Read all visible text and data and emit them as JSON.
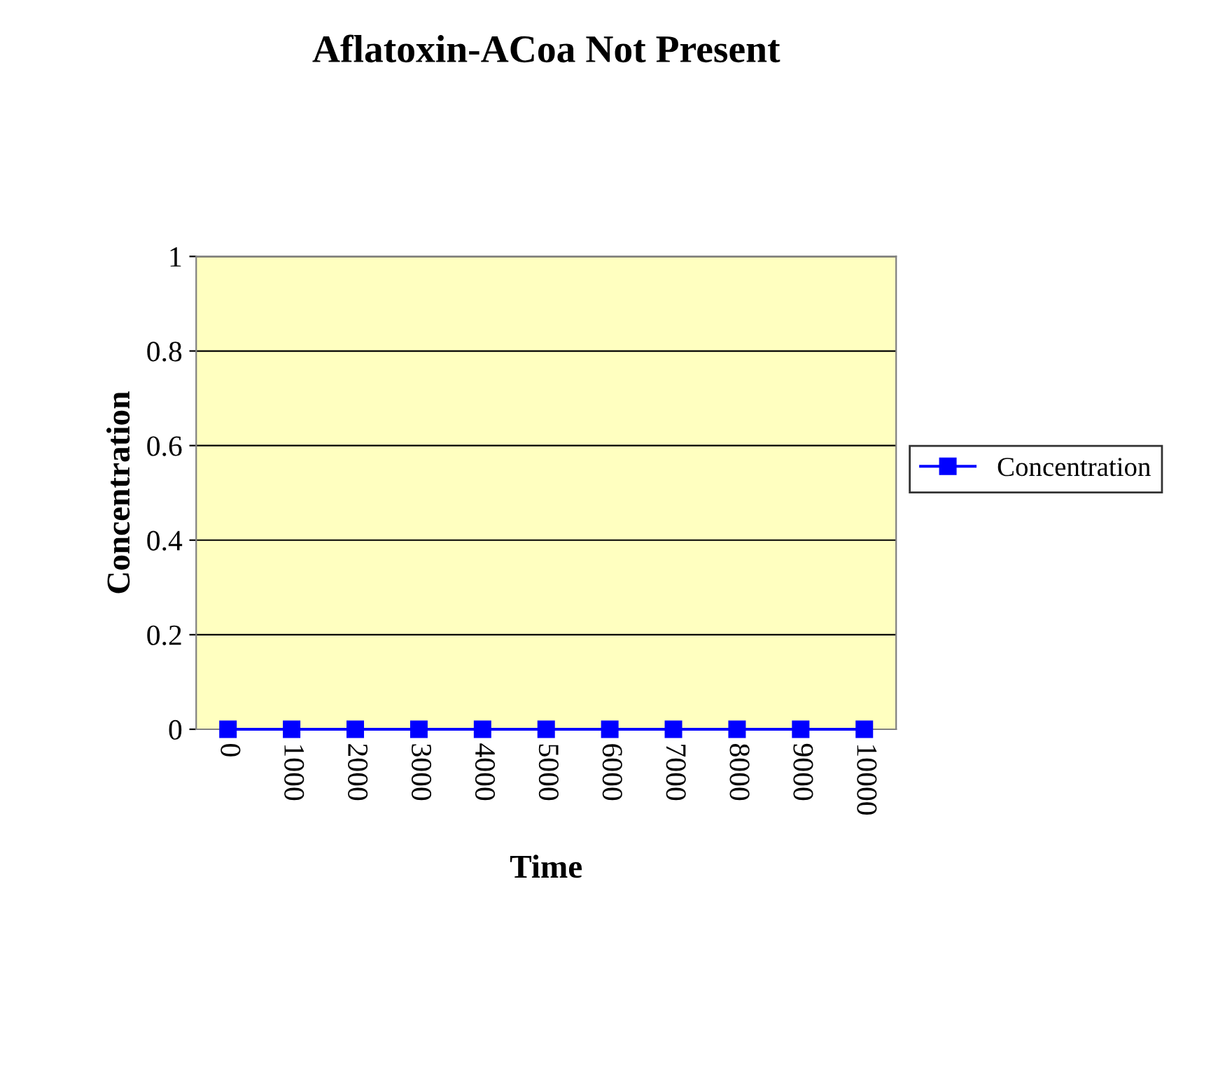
{
  "chart_data": {
    "type": "line",
    "title": "Aflatoxin-ACoa Not Present",
    "xlabel": "Time",
    "ylabel": "Concentration",
    "categories": [
      "0",
      "1000",
      "2000",
      "3000",
      "4000",
      "5000",
      "6000",
      "7000",
      "8000",
      "9000",
      "10000"
    ],
    "series": [
      {
        "name": "Concentration",
        "color": "#0000ff",
        "values": [
          0,
          0,
          0,
          0,
          0,
          0,
          0,
          0,
          0,
          0,
          0
        ]
      }
    ],
    "ylim": [
      0,
      1
    ],
    "yticks": [
      0,
      {
        "value": 0.2,
        "label": "0.2"
      },
      {
        "value": 0.4,
        "label": "0.4"
      },
      {
        "value": 0.6,
        "label": "0.6"
      },
      {
        "value": 0.8,
        "label": "0.8"
      },
      1
    ],
    "grid": "y",
    "legend": "right",
    "marker": "square",
    "line_style": "solid"
  }
}
